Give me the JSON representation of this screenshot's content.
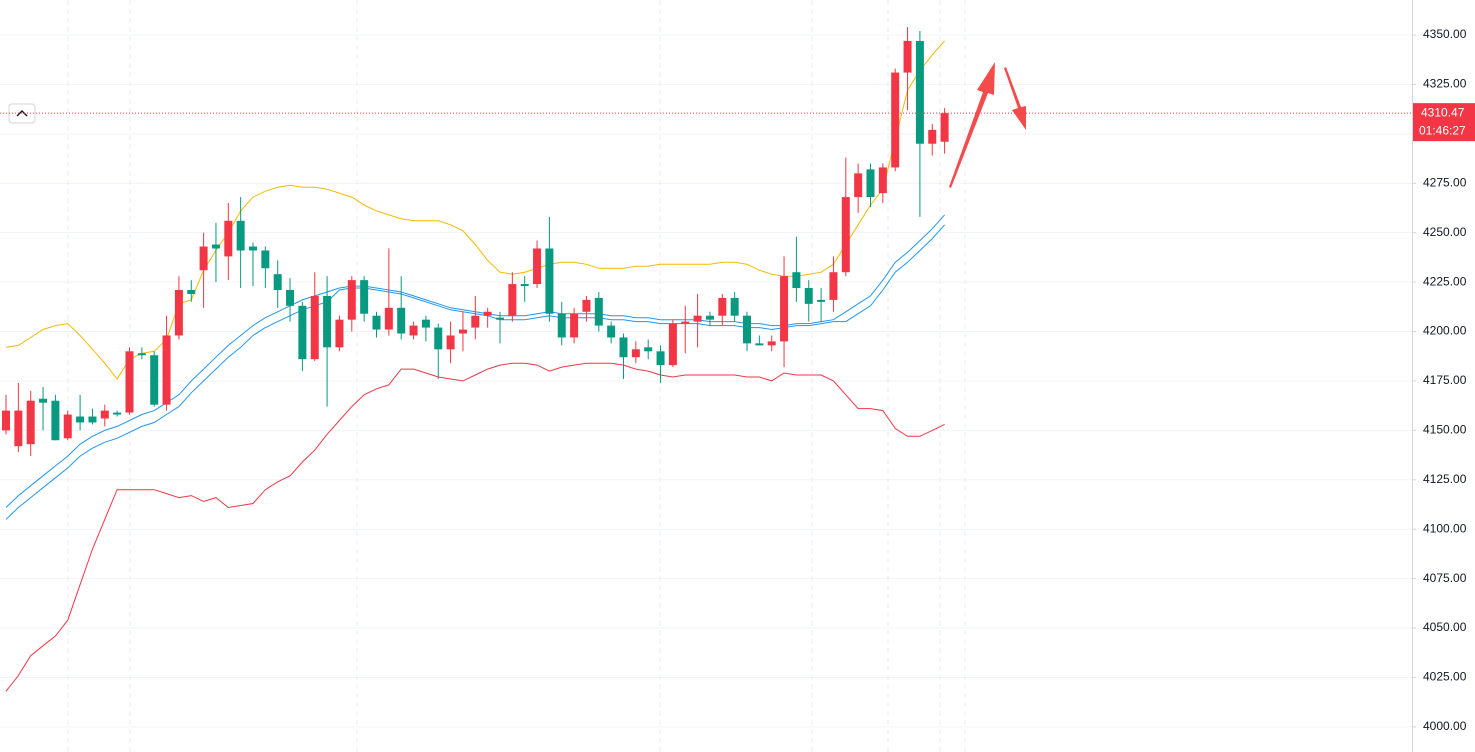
{
  "chart_data": {
    "type": "candlestick",
    "up_color": "#f23645",
    "down_color": "#089981",
    "open": [
      4150,
      4142,
      4143,
      4166,
      4165,
      4146,
      4157,
      4157,
      4156,
      4159,
      4159,
      4189,
      4188,
      4163,
      4198,
      4221,
      4231,
      4244,
      4238,
      4256,
      4243,
      4241,
      4229,
      4221,
      4213,
      4186,
      4218,
      4192,
      4206,
      4226,
      4208,
      4201,
      4212,
      4198,
      4206,
      4202,
      4191,
      4199,
      4202,
      4208,
      4207,
      4208,
      4224,
      4224,
      4242,
      4209,
      4197,
      4210,
      4217,
      4203,
      4197,
      4187,
      4192,
      4190,
      4183,
      4204,
      4205,
      4208,
      4208,
      4217,
      4208,
      4194,
      4193,
      4195,
      4230,
      4222,
      4216,
      4216,
      4230,
      4268,
      4282,
      4270,
      4283,
      4331,
      4347,
      4295,
      4296
    ],
    "high": [
      4168,
      4174,
      4170,
      4172,
      4168,
      4160,
      4168,
      4161,
      4163,
      4160,
      4192,
      4192,
      4190,
      4208,
      4228,
      4226,
      4250,
      4255,
      4265,
      4268,
      4245,
      4243,
      4236,
      4227,
      4215,
      4230,
      4228,
      4208,
      4228,
      4228,
      4210,
      4242,
      4228,
      4205,
      4208,
      4204,
      4205,
      4210,
      4218,
      4212,
      4210,
      4230,
      4228,
      4246,
      4258,
      4215,
      4212,
      4218,
      4220,
      4205,
      4199,
      4195,
      4196,
      4193,
      4206,
      4213,
      4219,
      4210,
      4219,
      4220,
      4210,
      4198,
      4198,
      4238,
      4248,
      4226,
      4222,
      4238,
      4288,
      4285,
      4285,
      4285,
      4333,
      4354,
      4352,
      4305,
      4313
    ],
    "low": [
      4148,
      4139,
      4137,
      4150,
      4145,
      4145,
      4150,
      4153,
      4152,
      4157,
      4158,
      4186,
      4162,
      4160,
      4196,
      4215,
      4212,
      4225,
      4226,
      4222,
      4223,
      4222,
      4212,
      4205,
      4180,
      4185,
      4162,
      4190,
      4200,
      4205,
      4197,
      4198,
      4196,
      4196,
      4195,
      4176,
      4184,
      4190,
      4196,
      4202,
      4194,
      4205,
      4215,
      4222,
      4205,
      4193,
      4194,
      4205,
      4200,
      4194,
      4176,
      4184,
      4186,
      4174,
      4182,
      4189,
      4192,
      4203,
      4203,
      4205,
      4190,
      4193,
      4190,
      4182,
      4215,
      4205,
      4205,
      4210,
      4228,
      4260,
      4263,
      4265,
      4281,
      4312,
      4258,
      4289,
      4290
    ],
    "close": [
      4160,
      4160,
      4165,
      4164,
      4145,
      4158,
      4154,
      4154,
      4160,
      4158,
      4190,
      4188,
      4163,
      4198,
      4221,
      4219,
      4243,
      4242,
      4256,
      4241,
      4241,
      4232,
      4221,
      4213,
      4186,
      4218,
      4192,
      4206,
      4226,
      4209,
      4201,
      4212,
      4199,
      4203,
      4202,
      4191,
      4198,
      4201,
      4208,
      4210,
      4206,
      4224,
      4223,
      4242,
      4209,
      4197,
      4209,
      4216,
      4203,
      4197,
      4187,
      4191,
      4190,
      4183,
      4204,
      4205,
      4208,
      4206,
      4217,
      4208,
      4194,
      4193,
      4195,
      4228,
      4222,
      4214,
      4215,
      4230,
      4268,
      4280,
      4268,
      4283,
      4331,
      4347,
      4295,
      4302,
      4310.47
    ],
    "series": [
      {
        "color": "#f5b800",
        "values": [
          4192,
          4193,
          4197,
          4201,
          4203,
          4204,
          4198,
          4191,
          4184,
          4176,
          4186,
          4189,
          4190,
          4196,
          4214,
          4216,
          4231,
          4241,
          4250,
          4261,
          4268,
          4271,
          4273,
          4274,
          4273,
          4273,
          4272,
          4270,
          4268,
          4264,
          4261,
          4259,
          4257,
          4256,
          4256,
          4256,
          4254,
          4251,
          4244,
          4236,
          4230,
          4229,
          4230,
          4232,
          4234,
          4235,
          4235,
          4234,
          4232,
          4232,
          4232,
          4233,
          4233,
          4234,
          4234,
          4234,
          4234,
          4234,
          4235,
          4235,
          4234,
          4231,
          4229,
          4228,
          4228,
          4229,
          4230,
          4234,
          4244,
          4254,
          4264,
          4272,
          4297,
          4322,
          4332,
          4340,
          4347
        ]
      },
      {
        "color": "#f23645",
        "values": [
          4018,
          4026,
          4036,
          4041,
          4046,
          4054,
          4072,
          4090,
          4105,
          4120,
          4120,
          4120,
          4120,
          4118,
          4116,
          4117,
          4114,
          4116,
          4111,
          4112,
          4113,
          4120,
          4124,
          4127,
          4134,
          4140,
          4148,
          4155,
          4162,
          4168,
          4171,
          4173,
          4181,
          4181,
          4179,
          4177,
          4176,
          4175,
          4178,
          4181,
          4183,
          4184,
          4184,
          4183,
          4180,
          4182,
          4183,
          4184,
          4184,
          4184,
          4183,
          4181,
          4180,
          4178,
          4177,
          4178,
          4178,
          4178,
          4178,
          4178,
          4177,
          4177,
          4175,
          4179,
          4178,
          4178,
          4178,
          4175,
          4168,
          4161,
          4161,
          4160,
          4151,
          4147,
          4147,
          4150,
          4153
        ]
      },
      {
        "color": "#2196f3",
        "values": [
          4111,
          4117,
          4122,
          4127,
          4132,
          4137,
          4143,
          4147,
          4150,
          4152,
          4155,
          4158,
          4160,
          4164,
          4168,
          4175,
          4181,
          4187,
          4193,
          4198,
          4203,
          4207,
          4210,
          4213,
          4216,
          4218,
          4220,
          4222,
          4223,
          4223,
          4222,
          4221,
          4220,
          4218,
          4216,
          4214,
          4212,
          4211,
          4210,
          4209,
          4208,
          4208,
          4208,
          4209,
          4210,
          4209,
          4209,
          4209,
          4209,
          4208,
          4208,
          4207,
          4207,
          4206,
          4206,
          4206,
          4206,
          4205,
          4205,
          4205,
          4204,
          4204,
          4203,
          4203,
          4204,
          4204,
          4205,
          4206,
          4210,
          4214,
          4218,
          4226,
          4235,
          4240,
          4246,
          4252,
          4259
        ]
      },
      {
        "color": "#2196f3",
        "values": [
          4105,
          4111,
          4116,
          4121,
          4126,
          4131,
          4137,
          4141,
          4144,
          4146,
          4149,
          4152,
          4154,
          4158,
          4162,
          4169,
          4175,
          4181,
          4187,
          4192,
          4198,
          4202,
          4205,
          4208,
          4211,
          4213,
          4215,
          4221,
          4222,
          4222,
          4221,
          4220,
          4219,
          4217,
          4215,
          4213,
          4211,
          4210,
          4209,
          4208,
          4206,
          4206,
          4206,
          4207,
          4208,
          4207,
          4207,
          4207,
          4207,
          4206,
          4206,
          4205,
          4205,
          4204,
          4204,
          4204,
          4204,
          4203,
          4203,
          4203,
          4202,
          4202,
          4201,
          4202,
          4203,
          4203,
          4204,
          4205,
          4205,
          4209,
          4213,
          4221,
          4230,
          4235,
          4241,
          4247,
          4254
        ]
      }
    ],
    "countdown": "01:46:27",
    "ylim": [
      3987.3,
      4367.7
    ],
    "yticks": [
      {
        "value": 4000,
        "label": "4000.00"
      },
      {
        "value": 4025,
        "label": "4025.00"
      },
      {
        "value": 4050,
        "label": "4050.00"
      },
      {
        "value": 4075,
        "label": "4075.00"
      },
      {
        "value": 4100,
        "label": "4100.00"
      },
      {
        "value": 4125,
        "label": "4125.00"
      },
      {
        "value": 4150,
        "label": "4150.00"
      },
      {
        "value": 4175,
        "label": "4175.00"
      },
      {
        "value": 4200,
        "label": "4200.00"
      },
      {
        "value": 4225,
        "label": "4225.00"
      },
      {
        "value": 4250,
        "label": "4250.00"
      },
      {
        "value": 4275,
        "label": "4275.00"
      },
      {
        "value": 4300,
        "label": "4300.00"
      },
      {
        "value": 4325,
        "label": "4325.00"
      },
      {
        "value": 4350,
        "label": "4350.00"
      }
    ],
    "grid": true
  }
}
